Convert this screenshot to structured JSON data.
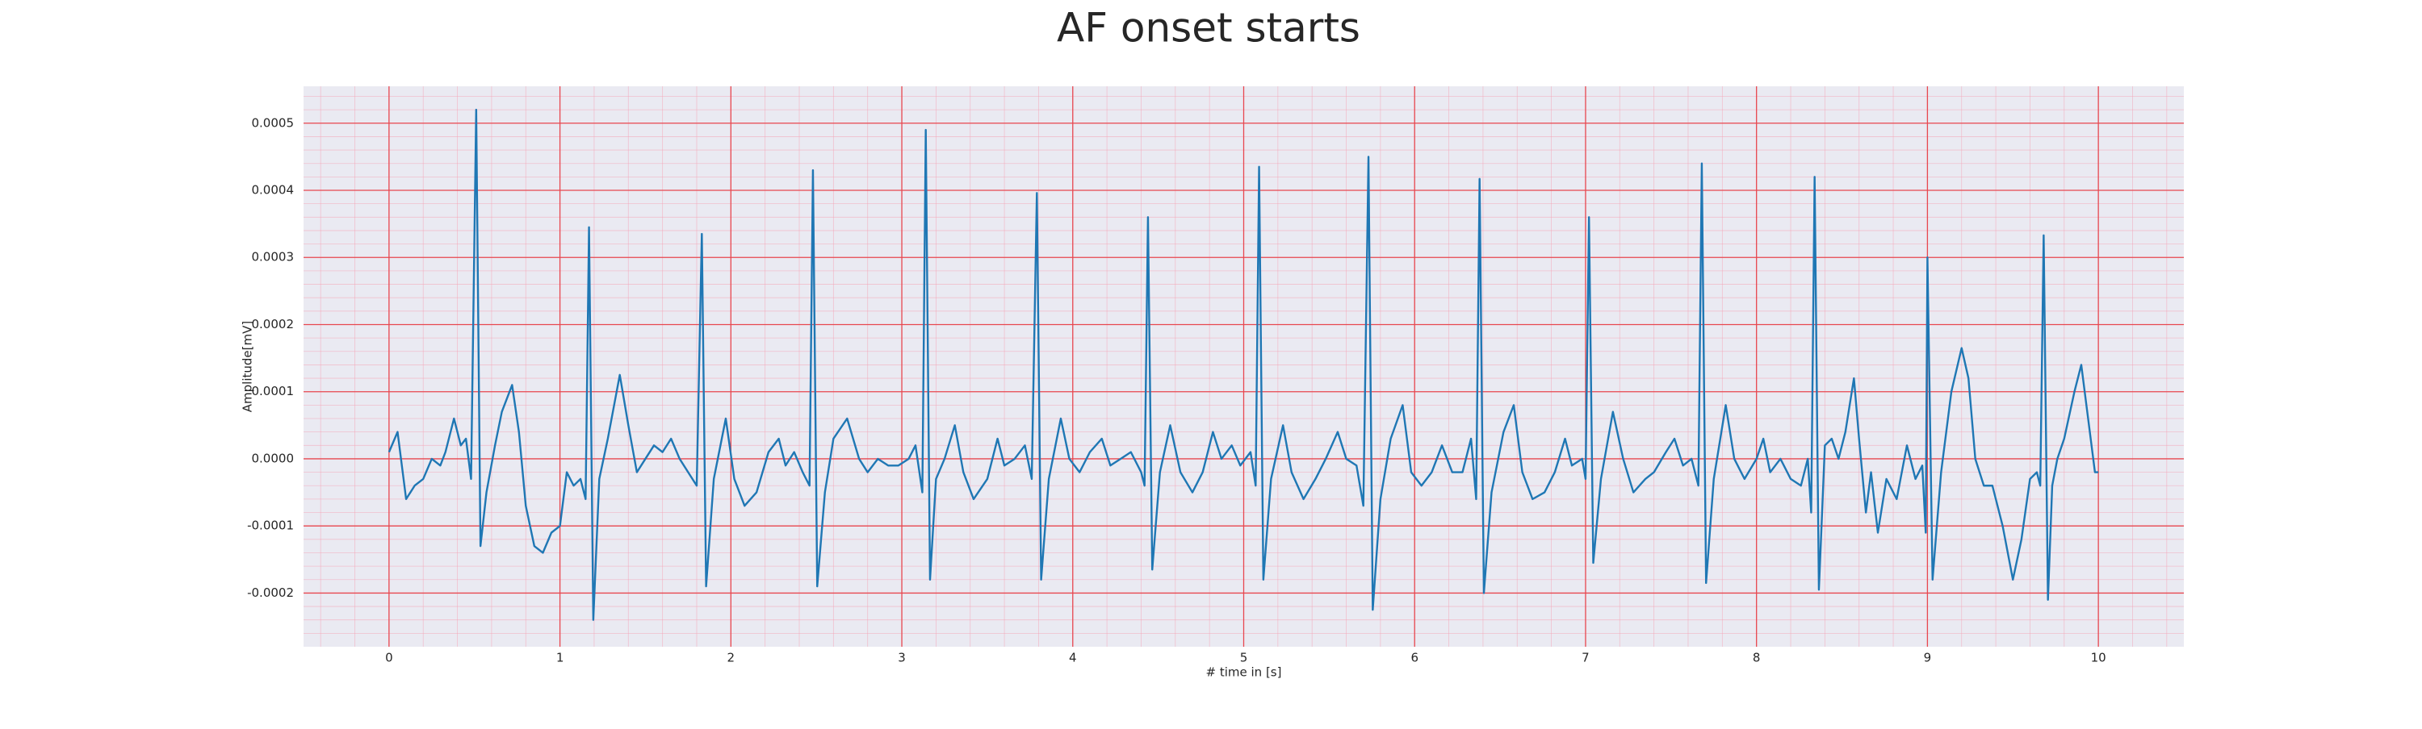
{
  "chart_data": {
    "type": "line",
    "title": "AF onset starts",
    "xlabel": "# time in [s]",
    "ylabel": "Amplitude[mV]",
    "color": "#1f77b4",
    "grid": true,
    "minor_grid": true,
    "xlim": [
      -0.5,
      10.5
    ],
    "ylim": [
      -0.00028,
      0.000555
    ],
    "xticks": [
      0,
      1,
      2,
      3,
      4,
      5,
      6,
      7,
      8,
      9,
      10
    ],
    "yticks": [
      -0.0002,
      -0.0001,
      {
        "value": 0,
        "label": "0.0000"
      },
      0.0001,
      0.0002,
      0.0003,
      0.0004,
      0.0005
    ],
    "x": [
      0,
      0.05,
      0.1,
      0.15,
      0.2,
      0.25,
      0.3,
      0.33,
      0.38,
      0.42,
      0.45,
      0.48,
      0.51,
      0.535,
      0.57,
      0.62,
      0.66,
      0.72,
      0.76,
      0.8,
      0.85,
      0.9,
      0.95,
      1.0,
      1.04,
      1.08,
      1.12,
      1.15,
      1.17,
      1.195,
      1.23,
      1.28,
      1.35,
      1.4,
      1.45,
      1.5,
      1.55,
      1.6,
      1.65,
      1.7,
      1.75,
      1.8,
      1.83,
      1.855,
      1.9,
      1.97,
      2.02,
      2.08,
      2.15,
      2.22,
      2.28,
      2.32,
      2.37,
      2.42,
      2.46,
      2.48,
      2.505,
      2.55,
      2.6,
      2.68,
      2.75,
      2.8,
      2.86,
      2.92,
      2.98,
      3.04,
      3.08,
      3.12,
      3.14,
      3.165,
      3.2,
      3.25,
      3.31,
      3.36,
      3.42,
      3.5,
      3.56,
      3.6,
      3.66,
      3.72,
      3.76,
      3.79,
      3.815,
      3.86,
      3.93,
      3.98,
      4.04,
      4.1,
      4.17,
      4.22,
      4.28,
      4.34,
      4.4,
      4.42,
      4.44,
      4.465,
      4.51,
      4.57,
      4.63,
      4.7,
      4.76,
      4.82,
      4.87,
      4.93,
      4.98,
      5.04,
      5.07,
      5.09,
      5.115,
      5.16,
      5.23,
      5.28,
      5.35,
      5.42,
      5.48,
      5.55,
      5.6,
      5.66,
      5.7,
      5.73,
      5.755,
      5.8,
      5.86,
      5.93,
      5.98,
      6.04,
      6.1,
      6.16,
      6.22,
      6.28,
      6.33,
      6.36,
      6.38,
      6.405,
      6.45,
      6.52,
      6.58,
      6.63,
      6.69,
      6.76,
      6.82,
      6.88,
      6.92,
      6.98,
      7.0,
      7.02,
      7.045,
      7.09,
      7.16,
      7.22,
      7.28,
      7.35,
      7.4,
      7.47,
      7.52,
      7.57,
      7.62,
      7.66,
      7.68,
      7.705,
      7.75,
      7.82,
      7.87,
      7.93,
      8.0,
      8.04,
      8.08,
      8.14,
      8.2,
      8.26,
      8.3,
      8.32,
      8.34,
      8.365,
      8.4,
      8.44,
      8.48,
      8.52,
      8.57,
      8.6,
      8.64,
      8.67,
      8.71,
      8.76,
      8.82,
      8.88,
      8.93,
      8.97,
      8.99,
      9.0,
      9.03,
      9.08,
      9.14,
      9.2,
      9.24,
      9.28,
      9.33,
      9.38,
      9.44,
      9.5,
      9.55,
      9.6,
      9.64,
      9.66,
      9.68,
      9.705,
      9.73,
      9.76,
      9.8,
      9.86,
      9.9,
      9.94,
      9.98,
      10.0
    ],
    "values": [
      1e-05,
      4e-05,
      -6e-05,
      -4e-05,
      -3e-05,
      0.0,
      -1e-05,
      1e-05,
      6e-05,
      2e-05,
      3e-05,
      -3e-05,
      0.00052,
      -0.00013,
      -5e-05,
      2e-05,
      7e-05,
      0.00011,
      4e-05,
      -7e-05,
      -0.00013,
      -0.00014,
      -0.00011,
      -0.0001,
      -2e-05,
      -4e-05,
      -3e-05,
      -6e-05,
      0.000345,
      -0.00024,
      -3e-05,
      3e-05,
      0.000125,
      5e-05,
      -2e-05,
      0.0,
      2e-05,
      1e-05,
      3e-05,
      0.0,
      -2e-05,
      -4e-05,
      0.000335,
      -0.00019,
      -3e-05,
      6e-05,
      -3e-05,
      -7e-05,
      -5e-05,
      1e-05,
      3e-05,
      -1e-05,
      1e-05,
      -2e-05,
      -4e-05,
      0.00043,
      -0.00019,
      -5e-05,
      3e-05,
      6e-05,
      0.0,
      -2e-05,
      0.0,
      -1e-05,
      -1e-05,
      0.0,
      2e-05,
      -5e-05,
      0.00049,
      -0.00018,
      -3e-05,
      0.0,
      5e-05,
      -2e-05,
      -6e-05,
      -3e-05,
      3e-05,
      -1e-05,
      0.0,
      2e-05,
      -3e-05,
      0.000396,
      -0.00018,
      -3e-05,
      6e-05,
      0.0,
      -2e-05,
      1e-05,
      3e-05,
      -1e-05,
      0.0,
      1e-05,
      -2e-05,
      -4e-05,
      0.00036,
      -0.000165,
      -2e-05,
      5e-05,
      -2e-05,
      -5e-05,
      -2e-05,
      4e-05,
      0.0,
      2e-05,
      -1e-05,
      1e-05,
      -4e-05,
      0.000435,
      -0.00018,
      -3e-05,
      5e-05,
      -2e-05,
      -6e-05,
      -3e-05,
      0.0,
      4e-05,
      0.0,
      -1e-05,
      -7e-05,
      0.00045,
      -0.000225,
      -6e-05,
      3e-05,
      8e-05,
      -2e-05,
      -4e-05,
      -2e-05,
      2e-05,
      -2e-05,
      -2e-05,
      3e-05,
      -6e-05,
      0.000417,
      -0.0002,
      -5e-05,
      4e-05,
      8e-05,
      -2e-05,
      -6e-05,
      -5e-05,
      -2e-05,
      3e-05,
      -1e-05,
      0.0,
      -3e-05,
      0.00036,
      -0.000155,
      -3e-05,
      7e-05,
      0.0,
      -5e-05,
      -3e-05,
      -2e-05,
      1e-05,
      3e-05,
      -1e-05,
      0.0,
      -4e-05,
      0.00044,
      -0.000185,
      -3e-05,
      8e-05,
      0.0,
      -3e-05,
      0.0,
      3e-05,
      -2e-05,
      0.0,
      -3e-05,
      -4e-05,
      0.0,
      -8e-05,
      0.00042,
      -0.000195,
      2e-05,
      3e-05,
      0.0,
      4e-05,
      0.00012,
      3e-05,
      -8e-05,
      -2e-05,
      -0.00011,
      -3e-05,
      -6e-05,
      2e-05,
      -3e-05,
      -1e-05,
      -0.00011,
      0.0003,
      -0.00018,
      -2e-05,
      0.0001,
      0.000165,
      0.00012,
      0.0,
      -4e-05,
      -4e-05,
      -0.0001,
      -0.00018,
      -0.00012,
      -3e-05,
      -2e-05,
      -4e-05,
      0.000333,
      -0.00021,
      -4e-05,
      0.0,
      3e-05,
      0.0001,
      0.00014,
      6e-05,
      -2e-05,
      -2e-05
    ]
  }
}
